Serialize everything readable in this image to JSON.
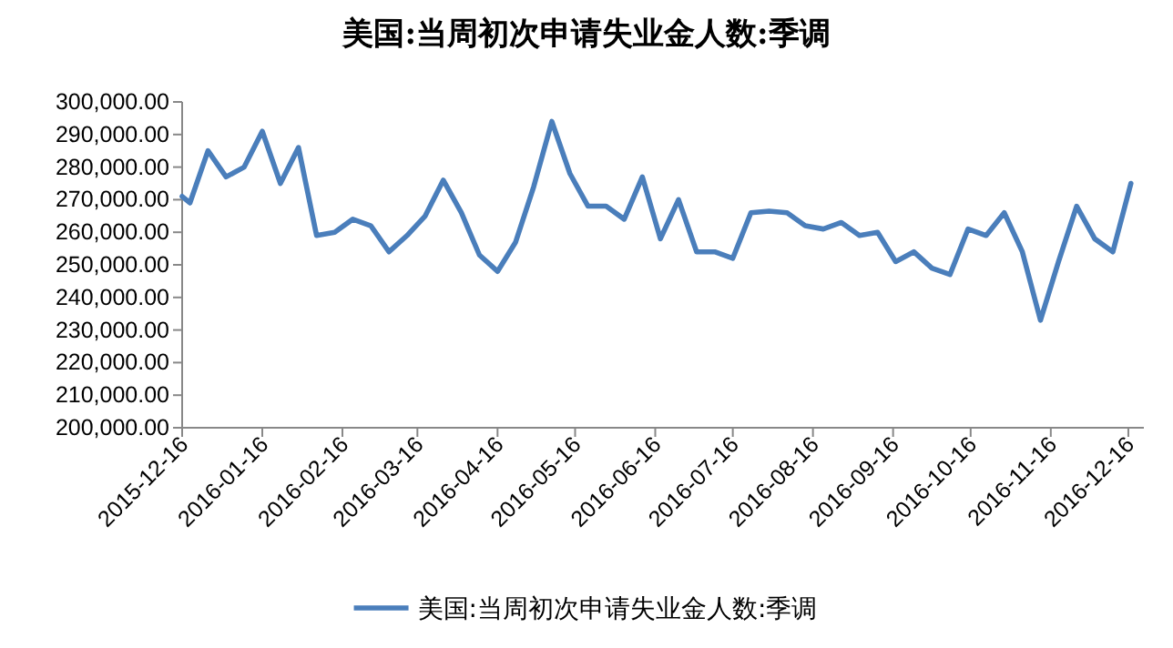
{
  "chart_data": {
    "type": "line",
    "title": "美国:当周初次申请失业金人数:季调",
    "x": [
      "2015-12-16",
      "2015-12-19",
      "2015-12-26",
      "2016-01-02",
      "2016-01-09",
      "2016-01-16",
      "2016-01-23",
      "2016-01-30",
      "2016-02-06",
      "2016-02-13",
      "2016-02-20",
      "2016-02-27",
      "2016-03-05",
      "2016-03-12",
      "2016-03-19",
      "2016-03-26",
      "2016-04-02",
      "2016-04-09",
      "2016-04-16",
      "2016-04-23",
      "2016-04-30",
      "2016-05-07",
      "2016-05-14",
      "2016-05-21",
      "2016-05-28",
      "2016-06-04",
      "2016-06-11",
      "2016-06-18",
      "2016-06-25",
      "2016-07-02",
      "2016-07-09",
      "2016-07-16",
      "2016-07-23",
      "2016-07-30",
      "2016-08-06",
      "2016-08-13",
      "2016-08-20",
      "2016-08-27",
      "2016-09-03",
      "2016-09-10",
      "2016-09-17",
      "2016-09-24",
      "2016-10-01",
      "2016-10-08",
      "2016-10-15",
      "2016-10-22",
      "2016-10-29",
      "2016-11-05",
      "2016-11-12",
      "2016-11-19",
      "2016-11-26",
      "2016-12-03",
      "2016-12-10",
      "2016-12-17"
    ],
    "series": [
      {
        "name": "美国:当周初次申请失业金人数:季调",
        "color": "#4a7ebb",
        "values": [
          271000,
          269000,
          285000,
          277000,
          280000,
          291000,
          275000,
          286000,
          259000,
          260000,
          264000,
          262000,
          254000,
          259000,
          265000,
          276000,
          266000,
          253000,
          248000,
          257000,
          274000,
          294000,
          278000,
          268000,
          268000,
          264000,
          277000,
          258000,
          270000,
          254000,
          254000,
          252000,
          266000,
          266500,
          266000,
          262000,
          261000,
          263000,
          259000,
          260000,
          251000,
          254000,
          249000,
          247000,
          261000,
          259000,
          266000,
          254000,
          233000,
          251000,
          268000,
          258000,
          254000,
          275000
        ]
      }
    ],
    "xlim": [
      "2015-12-16",
      "2016-12-22"
    ],
    "xticks": [
      "2015-12-16",
      "2016-01-16",
      "2016-02-16",
      "2016-03-16",
      "2016-04-16",
      "2016-05-16",
      "2016-06-16",
      "2016-07-16",
      "2016-08-16",
      "2016-09-16",
      "2016-10-16",
      "2016-11-16",
      "2016-12-16"
    ],
    "ylim": [
      200000,
      300000
    ],
    "yticks": [
      {
        "value": 200000,
        "label": "200,000.00"
      },
      {
        "value": 210000,
        "label": "210,000.00"
      },
      {
        "value": 220000,
        "label": "220,000.00"
      },
      {
        "value": 230000,
        "label": "230,000.00"
      },
      {
        "value": 240000,
        "label": "240,000.00"
      },
      {
        "value": 250000,
        "label": "250,000.00"
      },
      {
        "value": 260000,
        "label": "260,000.00"
      },
      {
        "value": 270000,
        "label": "270,000.00"
      },
      {
        "value": 280000,
        "label": "280,000.00"
      },
      {
        "value": 290000,
        "label": "290,000.00"
      },
      {
        "value": 300000,
        "label": "300,000.00"
      }
    ],
    "grid": false,
    "legend": "bottom",
    "marker": "none",
    "line_style": "solid"
  }
}
